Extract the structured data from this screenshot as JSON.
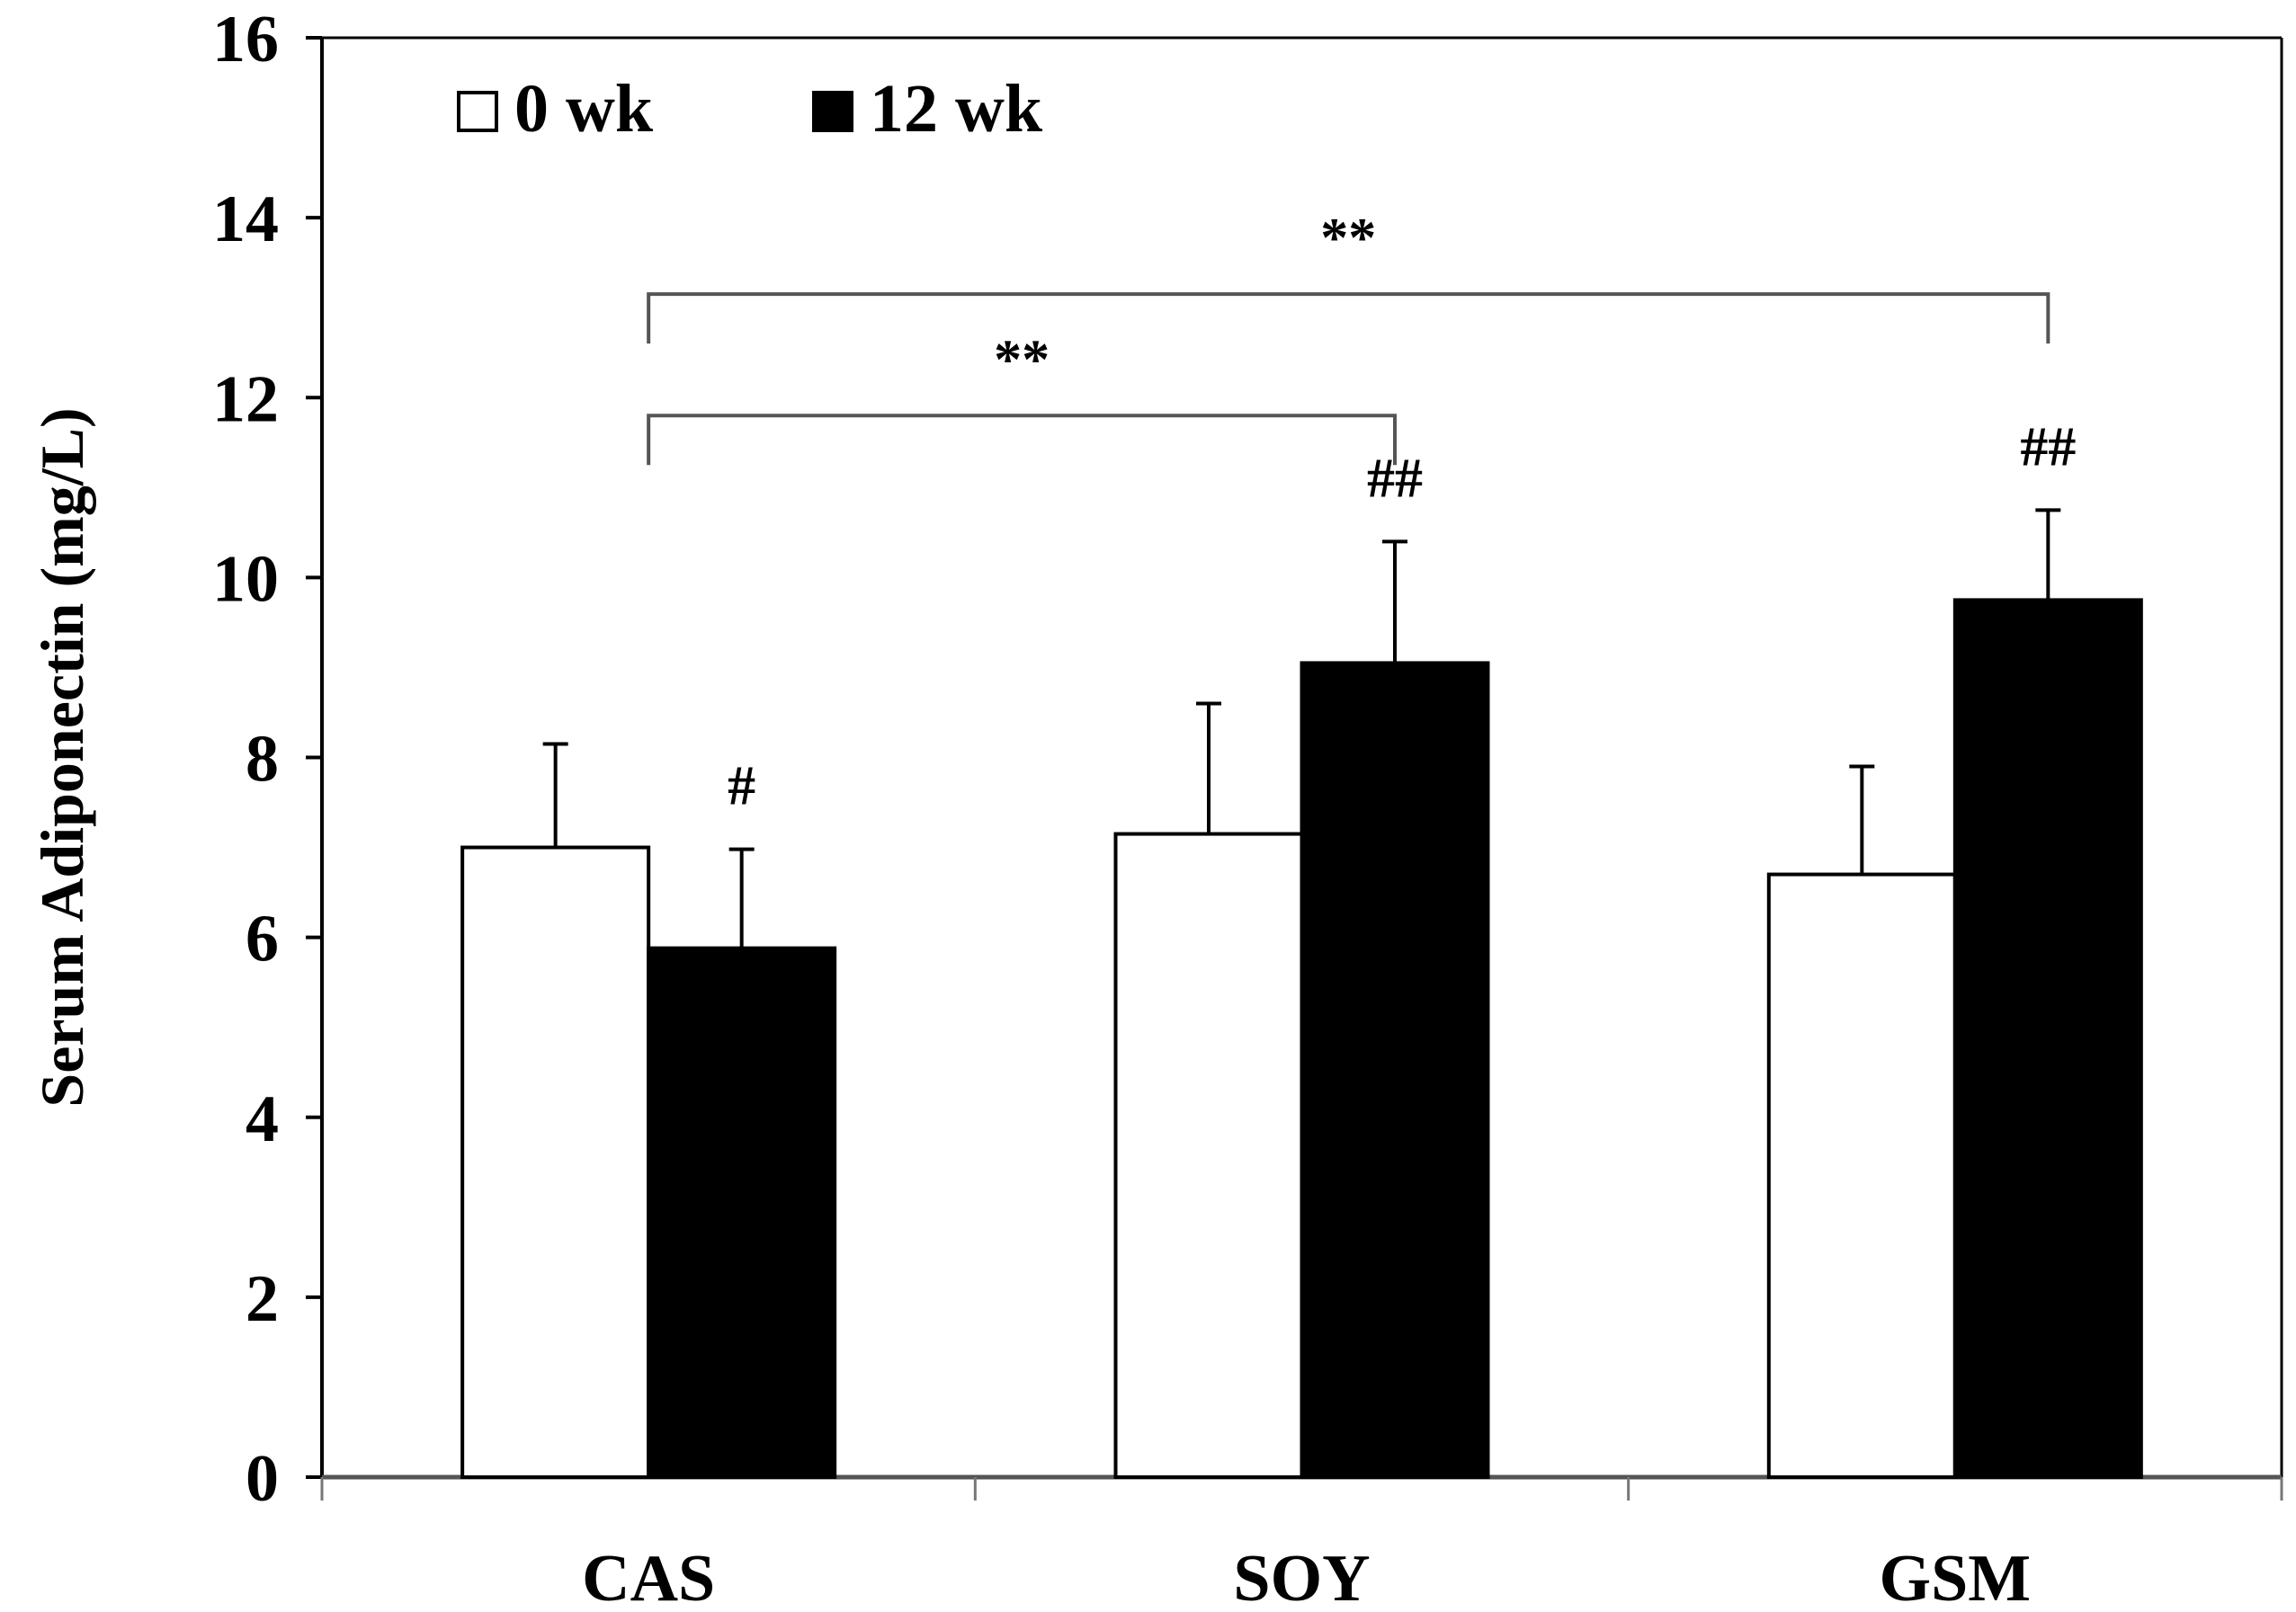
{
  "chart_data": {
    "type": "bar",
    "title": "",
    "xlabel": "",
    "ylabel": "Serum Adiponectin (mg/L)",
    "ylim": [
      0,
      16
    ],
    "yticks": [
      0,
      2,
      4,
      6,
      8,
      10,
      12,
      14,
      16
    ],
    "ytick_labels": [
      "0",
      "2",
      "4",
      "6",
      "8",
      "10",
      "12",
      "14",
      "16"
    ],
    "grid": false,
    "legend_position": "top-left",
    "categories": [
      "CAS",
      "SOY",
      "GSM"
    ],
    "series": [
      {
        "name": "0 wk",
        "color": "#ffffff",
        "values": [
          7.0,
          7.15,
          6.7
        ],
        "errors": [
          1.15,
          1.45,
          1.2
        ]
      },
      {
        "name": "12 wk",
        "color": "#000000",
        "values": [
          5.88,
          9.05,
          9.75
        ],
        "errors": [
          1.1,
          1.35,
          1.0
        ]
      }
    ],
    "bar_annotations": [
      {
        "category": "CAS",
        "series": "12 wk",
        "text": "#"
      },
      {
        "category": "SOY",
        "series": "12 wk",
        "text": "##"
      },
      {
        "category": "GSM",
        "series": "12 wk",
        "text": "##"
      }
    ],
    "brackets": [
      {
        "from": "CAS",
        "to": "SOY",
        "text": "**",
        "level": 11.8
      },
      {
        "from": "CAS",
        "to": "GSM",
        "text": "**",
        "level": 13.15
      }
    ]
  }
}
